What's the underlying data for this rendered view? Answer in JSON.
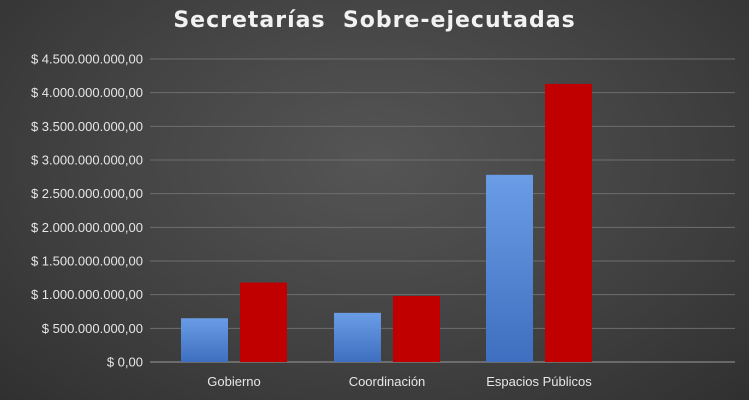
{
  "chart_data": {
    "type": "bar",
    "title": "Secretarías  Sobre-ejecutadas",
    "categories": [
      "Gobierno",
      "Coordinación",
      "Espacios Públicos"
    ],
    "series": [
      {
        "color": "#5b8fdc",
        "values": [
          650000000,
          730000000,
          2780000000
        ]
      },
      {
        "color": "#c00000",
        "values": [
          1180000000,
          980000000,
          4130000000
        ]
      }
    ],
    "ylim": [
      0,
      4500000000
    ],
    "yticks": [
      "$ 0,00",
      "$ 500.000.000,00",
      "$ 1.000.000.000,00",
      "$ 1.500.000.000,00",
      "$ 2.000.000.000,00",
      "$ 2.500.000.000,00",
      "$ 3.000.000.000,00",
      "$ 3.500.000.000,00",
      "$ 4.000.000.000,00",
      "$ 4.500.000.000,00"
    ],
    "grid": true,
    "legend": "none"
  }
}
